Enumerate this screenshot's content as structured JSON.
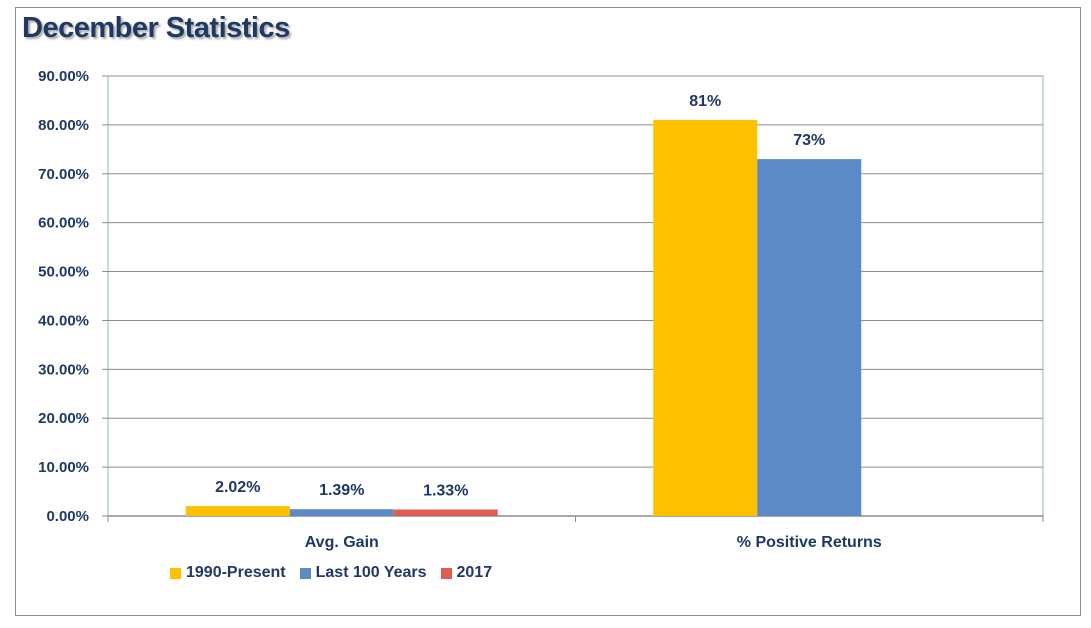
{
  "title": "December Statistics",
  "chart_data": {
    "type": "bar",
    "title": "December Statistics",
    "categories": [
      "Avg. Gain",
      "% Positive Returns"
    ],
    "series": [
      {
        "name": "1990-Present",
        "color": "#ffc000",
        "values": [
          2.02,
          81
        ],
        "labels": [
          "2.02%",
          "81%"
        ]
      },
      {
        "name": "Last 100 Years",
        "color": "#5b8ac7",
        "values": [
          1.39,
          73
        ],
        "labels": [
          "1.39%",
          "73%"
        ]
      },
      {
        "name": "2017",
        "color": "#e05d4f",
        "values": [
          1.33,
          null
        ],
        "labels": [
          "1.33%",
          ""
        ]
      }
    ],
    "ylim": [
      0,
      90
    ],
    "yticks": [
      "0.00%",
      "10.00%",
      "20.00%",
      "30.00%",
      "40.00%",
      "50.00%",
      "60.00%",
      "70.00%",
      "80.00%",
      "90.00%"
    ],
    "grid": true,
    "legend_position": "bottom-left",
    "plot_border_color": "#7fc4b2",
    "text_color": "#1f3864"
  }
}
